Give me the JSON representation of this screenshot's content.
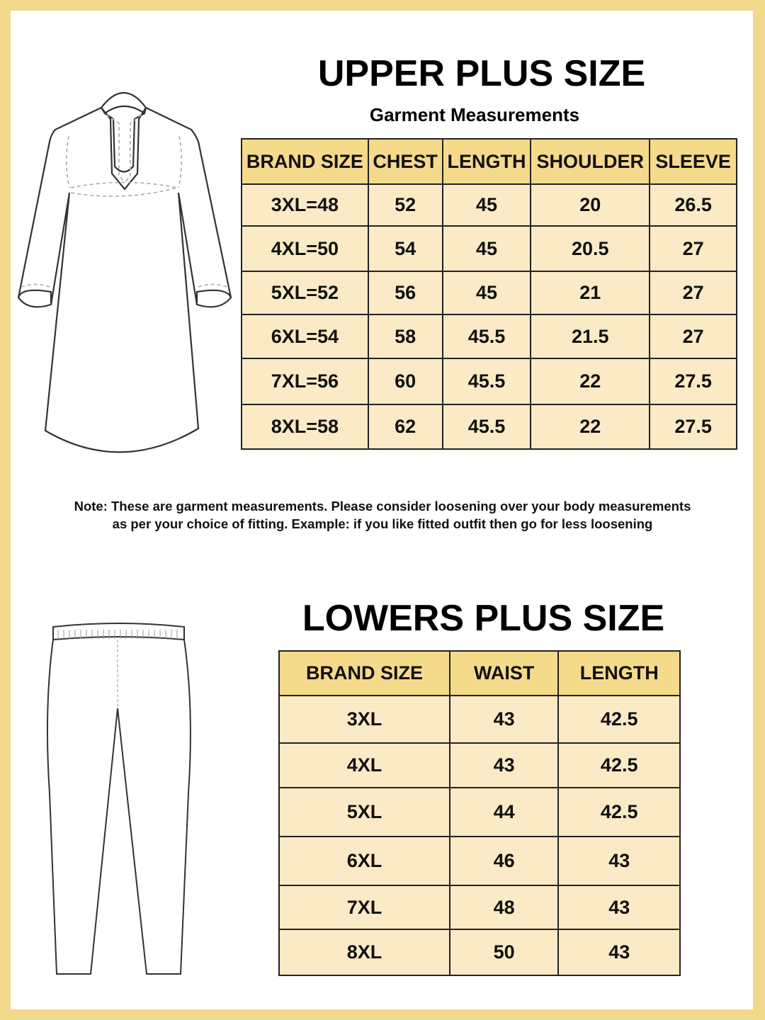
{
  "colors": {
    "border": "#f3d98a",
    "header": "#f5da8c",
    "row": "#faeac6"
  },
  "upper": {
    "title": "UPPER PLUS SIZE",
    "subtitle": "Garment Measurements",
    "headers": [
      "BRAND SIZE",
      "CHEST",
      "LENGTH",
      "SHOULDER",
      "SLEEVE"
    ],
    "rows": [
      [
        "3XL=48",
        "52",
        "45",
        "20",
        "26.5"
      ],
      [
        "4XL=50",
        "54",
        "45",
        "20.5",
        "27"
      ],
      [
        "5XL=52",
        "56",
        "45",
        "21",
        "27"
      ],
      [
        "6XL=54",
        "58",
        "45.5",
        "21.5",
        "27"
      ],
      [
        "7XL=56",
        "60",
        "45.5",
        "22",
        "27.5"
      ],
      [
        "8XL=58",
        "62",
        "45.5",
        "22",
        "27.5"
      ]
    ]
  },
  "note": {
    "line1": "Note: These are garment measurements. Please consider loosening over your body measurements",
    "line2": "as per your choice of fitting. Example: if you like fitted outfit then go for less loosening"
  },
  "lower": {
    "title": "LOWERS PLUS SIZE",
    "headers": [
      "BRAND SIZE",
      "WAIST",
      "LENGTH"
    ],
    "rows": [
      [
        "3XL",
        "43",
        "42.5"
      ],
      [
        "4XL",
        "43",
        "42.5"
      ],
      [
        "5XL",
        "44",
        "42.5"
      ],
      [
        "6XL",
        "46",
        "43"
      ],
      [
        "7XL",
        "48",
        "43"
      ],
      [
        "8XL",
        "50",
        "43"
      ]
    ]
  }
}
